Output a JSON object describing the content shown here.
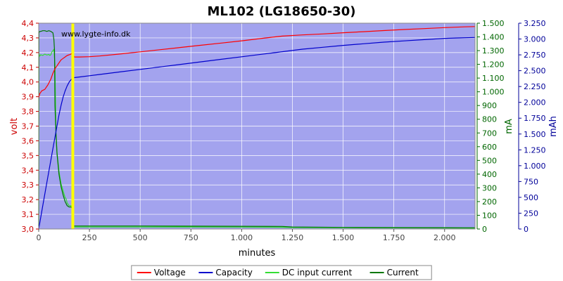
{
  "chart_data": {
    "type": "line",
    "title": "ML102 (LG18650-30)",
    "watermark": "www.lygte-info.dk",
    "xlabel": "minutes",
    "ylabel_left": "volt",
    "ylabel_right_current": "mA",
    "ylabel_right_capacity": "mAh",
    "xlim": [
      0,
      2150
    ],
    "ylim_left": [
      3.0,
      4.4
    ],
    "ylim_current": [
      0,
      1500
    ],
    "ylim_capacity": [
      0,
      3250
    ],
    "x_ticks": [
      0,
      250,
      500,
      750,
      1000,
      1250,
      1500,
      1750,
      2000
    ],
    "x_tick_labels": [
      "0",
      "250",
      "500",
      "750",
      "1.000",
      "1.250",
      "1.500",
      "1.750",
      "2.000"
    ],
    "y_left_ticks": [
      3.0,
      3.1,
      3.2,
      3.3,
      3.4,
      3.5,
      3.6,
      3.7,
      3.8,
      3.9,
      4.0,
      4.1,
      4.2,
      4.3,
      4.4
    ],
    "y_left_tick_labels": [
      "3,0",
      "3,1",
      "3,2",
      "3,3",
      "3,4",
      "3,5",
      "3,6",
      "3,7",
      "3,8",
      "3,9",
      "4,0",
      "4,1",
      "4,2",
      "4,3",
      "4,4"
    ],
    "y_current_ticks": [
      0,
      100,
      200,
      300,
      400,
      500,
      600,
      700,
      800,
      900,
      1000,
      1100,
      1200,
      1300,
      1400,
      1500
    ],
    "y_current_tick_labels": [
      "0",
      "100",
      "200",
      "300",
      "400",
      "500",
      "600",
      "700",
      "800",
      "900",
      "1.000",
      "1.100",
      "1.200",
      "1.300",
      "1.400",
      "1.500"
    ],
    "y_capacity_ticks": [
      0,
      250,
      500,
      750,
      1000,
      1250,
      1500,
      1750,
      2000,
      2250,
      2500,
      2750,
      3000,
      3250
    ],
    "y_capacity_tick_labels": [
      "0",
      "250",
      "500",
      "750",
      "1.000",
      "1.250",
      "1.500",
      "1.750",
      "2.000",
      "2.250",
      "2.500",
      "2.750",
      "3.000",
      "3.250"
    ],
    "grid": true,
    "legend_position": "bottom",
    "marker_x": 168,
    "colors": {
      "plot_bg": "#a3a3ee",
      "voltage": "#ff0000",
      "capacity": "#0000cc",
      "dc_input": "#33dd33",
      "current": "#007700",
      "marker": "#ffff00",
      "left_axis": "#cc0000",
      "current_axis": "#006600",
      "capacity_axis": "#000099"
    },
    "series": [
      {
        "name": "Voltage",
        "axis": "left",
        "x": [
          0,
          5,
          15,
          30,
          45,
          60,
          70,
          80,
          90,
          100,
          110,
          120,
          130,
          140,
          150,
          160,
          165,
          170,
          175,
          200,
          250,
          300,
          400,
          500,
          600,
          700,
          800,
          900,
          1000,
          1100,
          1200,
          1300,
          1400,
          1500,
          1600,
          1700,
          1800,
          1900,
          2000,
          2100,
          2150
        ],
        "values": [
          3.89,
          3.92,
          3.94,
          3.95,
          3.98,
          4.02,
          4.06,
          4.09,
          4.11,
          4.13,
          4.15,
          4.16,
          4.17,
          4.18,
          4.185,
          4.19,
          4.2,
          4.19,
          4.17,
          4.17,
          4.172,
          4.177,
          4.19,
          4.205,
          4.22,
          4.235,
          4.25,
          4.265,
          4.28,
          4.297,
          4.312,
          4.32,
          4.327,
          4.335,
          4.342,
          4.35,
          4.357,
          4.363,
          4.37,
          4.375,
          4.377
        ]
      },
      {
        "name": "Capacity",
        "axis": "capacity",
        "x": [
          0,
          20,
          40,
          60,
          80,
          100,
          110,
          120,
          130,
          140,
          150,
          160,
          168,
          175,
          200,
          250,
          300,
          400,
          500,
          600,
          700,
          800,
          900,
          1000,
          1100,
          1200,
          1300,
          1400,
          1500,
          1600,
          1700,
          1800,
          1900,
          2000,
          2100,
          2150
        ],
        "values": [
          0,
          370,
          730,
          1090,
          1450,
          1800,
          1950,
          2080,
          2180,
          2260,
          2320,
          2360,
          2380,
          2390,
          2400,
          2420,
          2440,
          2480,
          2520,
          2560,
          2600,
          2640,
          2680,
          2720,
          2760,
          2800,
          2840,
          2870,
          2900,
          2925,
          2950,
          2970,
          2990,
          3010,
          3020,
          3025
        ]
      },
      {
        "name": "DC input current",
        "axis": "current",
        "x": [
          0,
          1,
          5,
          10,
          20,
          30,
          40,
          50,
          55,
          60,
          65,
          70,
          75,
          80,
          85,
          90,
          100,
          110,
          120,
          130,
          135,
          140,
          150,
          155,
          160,
          163,
          165,
          166,
          167,
          168,
          170,
          200,
          300,
          500,
          700,
          1000,
          1200,
          1250,
          1500,
          1800,
          2100,
          2150
        ],
        "values": [
          20,
          1280,
          1260,
          1270,
          1265,
          1275,
          1268,
          1272,
          1265,
          1270,
          1290,
          1300,
          1310,
          1200,
          700,
          560,
          420,
          330,
          280,
          230,
          220,
          190,
          170,
          170,
          170,
          150,
          120,
          80,
          30,
          15,
          15,
          15,
          15,
          15,
          15,
          14,
          13,
          11,
          9,
          8,
          7,
          6
        ]
      },
      {
        "name": "Current",
        "axis": "current",
        "x": [
          0,
          1,
          5,
          10,
          20,
          30,
          40,
          50,
          60,
          70,
          75,
          78,
          80,
          85,
          90,
          100,
          110,
          120,
          130,
          140,
          150,
          160,
          165,
          166,
          167,
          168,
          170,
          200,
          300,
          500,
          700,
          1000,
          1200,
          1250,
          1500,
          1800,
          2100,
          2150
        ],
        "values": [
          20,
          1430,
          1440,
          1440,
          1445,
          1445,
          1440,
          1445,
          1440,
          1430,
          1380,
          1300,
          900,
          700,
          550,
          400,
          310,
          250,
          200,
          170,
          160,
          160,
          150,
          40,
          25,
          22,
          22,
          22,
          22,
          22,
          21,
          20,
          19,
          15,
          12,
          10,
          9,
          9
        ]
      }
    ]
  }
}
